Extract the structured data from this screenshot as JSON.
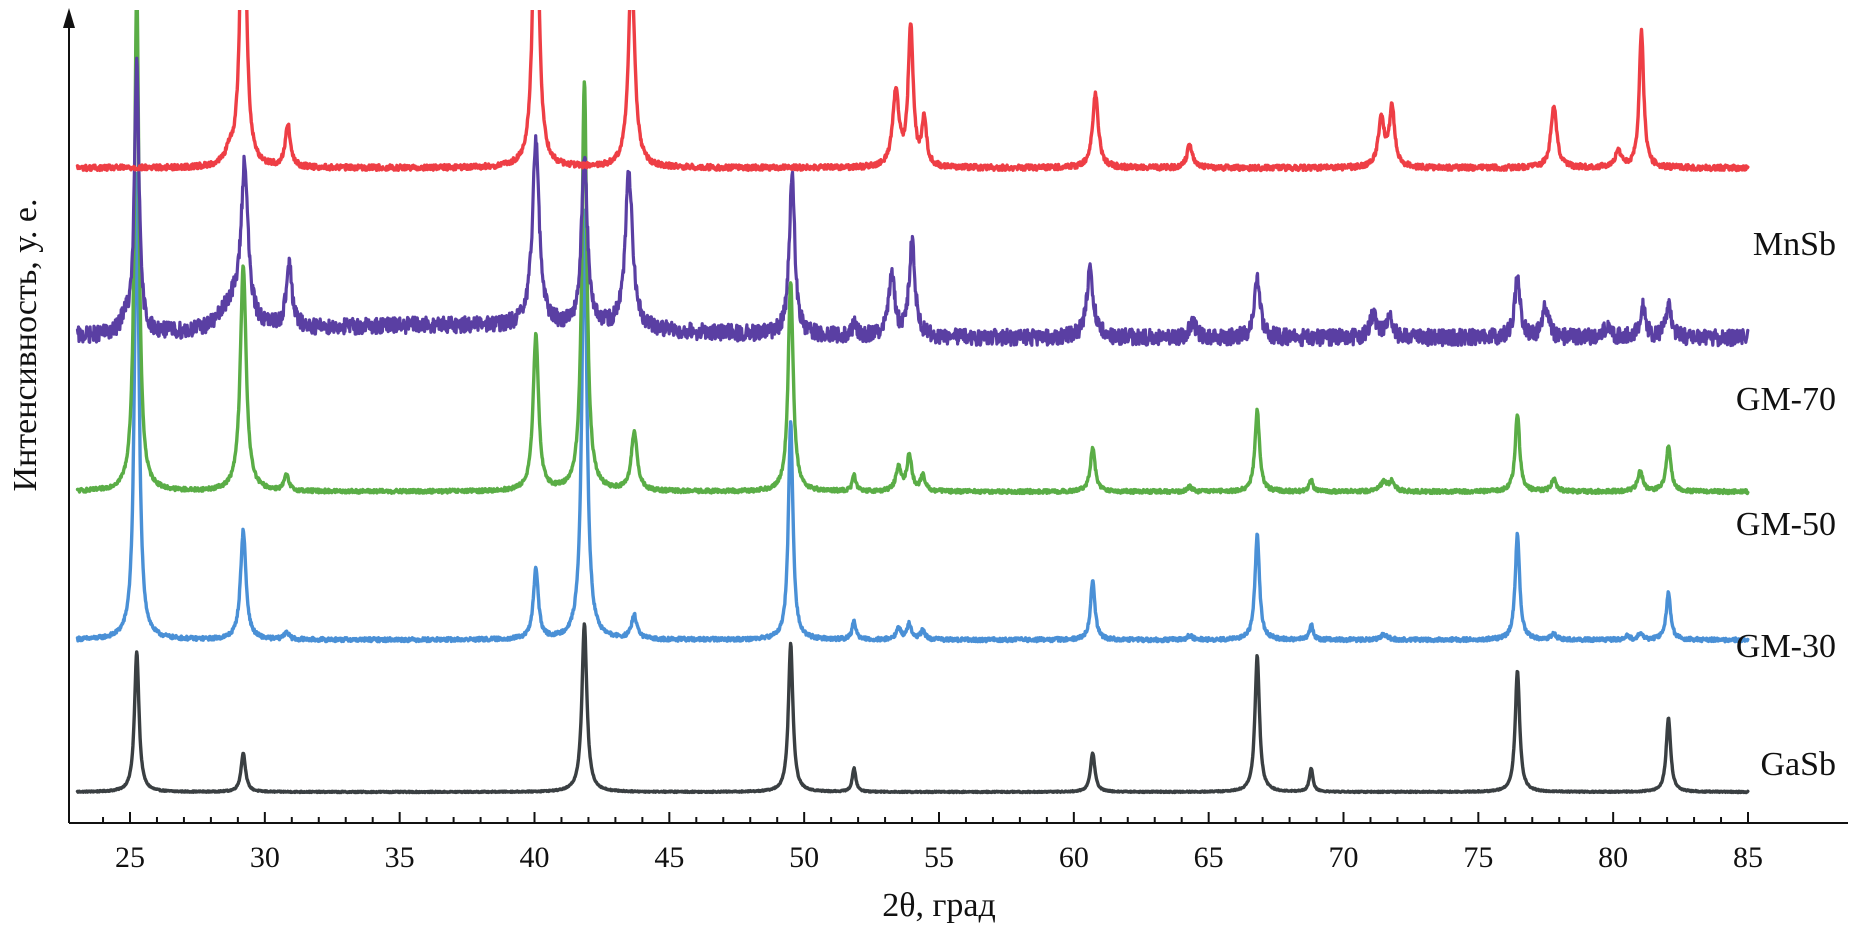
{
  "chart_data": {
    "type": "line",
    "xlabel": "2θ, град",
    "ylabel": "Интенсивность, у. е.",
    "xlim": [
      23,
      85
    ],
    "xticks": [
      25,
      30,
      35,
      40,
      45,
      50,
      55,
      60,
      65,
      70,
      75,
      80,
      85
    ],
    "grid": false,
    "legend": "labels at right end of each curve",
    "offset_units": "stacked curves, relative intensity",
    "series": [
      {
        "name": "GaSb",
        "color": "#3a3f42",
        "offset": 0,
        "noise": 0.08,
        "baseline": 0,
        "peaks": [
          [
            25.25,
            18,
            0.1
          ],
          [
            29.2,
            5,
            0.1
          ],
          [
            41.85,
            21.5,
            0.11
          ],
          [
            49.5,
            19,
            0.1
          ],
          [
            51.85,
            3,
            0.08
          ],
          [
            60.7,
            5,
            0.1
          ],
          [
            66.8,
            17.5,
            0.1
          ],
          [
            68.8,
            3,
            0.08
          ],
          [
            76.45,
            15.5,
            0.1
          ],
          [
            82.05,
            9.5,
            0.1
          ]
        ]
      },
      {
        "name": "GM-30",
        "color": "#4a90d6",
        "offset": 19.5,
        "noise": 0.25,
        "baseline": 0,
        "peaks": [
          [
            25.25,
            60,
            0.1
          ],
          [
            29.2,
            14,
            0.12
          ],
          [
            30.8,
            1,
            0.1
          ],
          [
            40.05,
            9,
            0.11
          ],
          [
            41.85,
            55,
            0.11
          ],
          [
            43.7,
            3,
            0.12
          ],
          [
            49.5,
            28,
            0.1
          ],
          [
            51.85,
            2.5,
            0.08
          ],
          [
            53.5,
            1.5,
            0.1
          ],
          [
            53.9,
            2,
            0.1
          ],
          [
            54.4,
            1.2,
            0.1
          ],
          [
            60.7,
            7.5,
            0.1
          ],
          [
            64.3,
            0.6,
            0.1
          ],
          [
            66.8,
            13.5,
            0.1
          ],
          [
            68.8,
            2,
            0.08
          ],
          [
            71.5,
            0.7,
            0.15
          ],
          [
            76.45,
            13.5,
            0.1
          ],
          [
            77.8,
            0.8,
            0.1
          ],
          [
            80.5,
            0.5,
            0.1
          ],
          [
            81.0,
            0.8,
            0.1
          ],
          [
            82.05,
            6,
            0.1
          ]
        ]
      },
      {
        "name": "GM-50",
        "color": "#5aad46",
        "offset": 38.5,
        "noise": 0.25,
        "baseline": 0,
        "peaks": [
          [
            25.25,
            65,
            0.1
          ],
          [
            29.2,
            29,
            0.13
          ],
          [
            30.8,
            2,
            0.1
          ],
          [
            40.05,
            20,
            0.12
          ],
          [
            41.85,
            52.5,
            0.11
          ],
          [
            43.7,
            7.5,
            0.13
          ],
          [
            49.5,
            27,
            0.11
          ],
          [
            51.85,
            2,
            0.08
          ],
          [
            53.5,
            3,
            0.12
          ],
          [
            53.9,
            4.5,
            0.11
          ],
          [
            54.4,
            2,
            0.1
          ],
          [
            60.7,
            5.5,
            0.11
          ],
          [
            64.3,
            0.6,
            0.1
          ],
          [
            66.8,
            10.5,
            0.1
          ],
          [
            68.8,
            1.5,
            0.08
          ],
          [
            71.5,
            1.2,
            0.15
          ],
          [
            71.8,
            1.2,
            0.12
          ],
          [
            76.45,
            10,
            0.1
          ],
          [
            77.8,
            1.5,
            0.12
          ],
          [
            81.0,
            2.5,
            0.12
          ],
          [
            82.05,
            5.8,
            0.11
          ]
        ]
      },
      {
        "name": "GM-70",
        "color": "#5a3fa3",
        "offset": 57.5,
        "noise": 1.05,
        "baseline": 2.0,
        "peaks": [
          [
            24.8,
            2,
            0.15
          ],
          [
            25.25,
            35,
            0.1
          ],
          [
            28.8,
            3.5,
            0.5
          ],
          [
            29.25,
            20,
            0.15
          ],
          [
            30.9,
            8,
            0.13
          ],
          [
            40.05,
            24,
            0.15
          ],
          [
            41.85,
            22,
            0.13
          ],
          [
            43.5,
            20,
            0.16
          ],
          [
            49.55,
            21,
            0.12
          ],
          [
            51.85,
            1.5,
            0.1
          ],
          [
            53.25,
            8,
            0.13
          ],
          [
            54.0,
            12,
            0.13
          ],
          [
            60.6,
            8.5,
            0.16
          ],
          [
            64.4,
            2,
            0.15
          ],
          [
            66.8,
            7.5,
            0.13
          ],
          [
            71.1,
            3,
            0.15
          ],
          [
            71.7,
            3,
            0.13
          ],
          [
            76.45,
            7.5,
            0.13
          ],
          [
            77.5,
            4,
            0.13
          ],
          [
            79.8,
            1.5,
            0.15
          ],
          [
            81.1,
            4,
            0.13
          ],
          [
            82.05,
            4,
            0.13
          ]
        ]
      },
      {
        "name": "MnSb",
        "color": "#ee3e45",
        "offset": 80.0,
        "noise": 0.35,
        "baseline": 0,
        "peaks": [
          [
            28.7,
            1.5,
            0.2
          ],
          [
            29.2,
            50,
            0.11
          ],
          [
            30.85,
            5.5,
            0.11
          ],
          [
            40.05,
            45,
            0.12
          ],
          [
            43.6,
            25.5,
            0.14
          ],
          [
            53.4,
            9.5,
            0.14
          ],
          [
            53.95,
            18,
            0.11
          ],
          [
            54.45,
            6,
            0.1
          ],
          [
            60.8,
            9.5,
            0.13
          ],
          [
            64.3,
            3,
            0.12
          ],
          [
            71.4,
            6,
            0.14
          ],
          [
            71.8,
            7.5,
            0.12
          ],
          [
            77.8,
            8,
            0.13
          ],
          [
            80.2,
            2,
            0.15
          ],
          [
            81.05,
            17.5,
            0.1
          ]
        ]
      }
    ]
  }
}
